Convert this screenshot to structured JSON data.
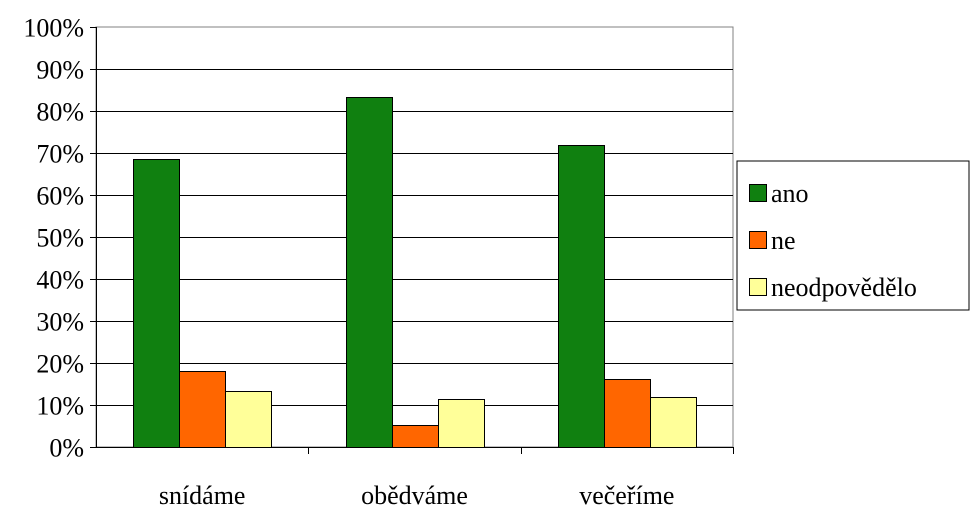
{
  "chart_data": {
    "type": "bar",
    "categories": [
      "snídáme",
      "obědváme",
      "večeříme"
    ],
    "series": [
      {
        "name": "ano",
        "color": "#108010",
        "values": [
          68.5,
          83.3,
          71.8
        ]
      },
      {
        "name": "ne",
        "color": "#ff6600",
        "values": [
          18.0,
          5.3,
          16.2
        ]
      },
      {
        "name": "neodpovědělo",
        "color": "#ffff99",
        "values": [
          13.4,
          11.4,
          11.9
        ]
      }
    ],
    "ylim": [
      0,
      100
    ],
    "yticks": [
      "0%",
      "10%",
      "20%",
      "30%",
      "40%",
      "50%",
      "60%",
      "70%",
      "80%",
      "90%",
      "100%"
    ],
    "grid": true,
    "legend_position": "right"
  }
}
